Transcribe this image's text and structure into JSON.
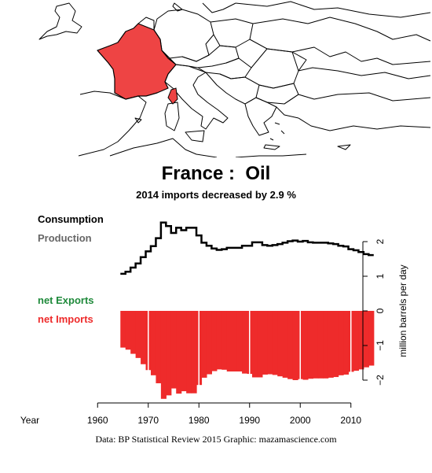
{
  "map": {
    "highlight_color": "#ee4444",
    "outline_color": "#000000"
  },
  "chart_data": {
    "type": "area",
    "title": "France :  Oil",
    "subtitle": "2014 imports decreased by 2.9 %",
    "legend": {
      "consumption": "Consumption",
      "production": "Production",
      "net_exports": "net Exports",
      "net_imports": "net Imports"
    },
    "ylabel": "million barrels per day",
    "x_axis_title": "Year",
    "xlim": [
      1955,
      2015
    ],
    "ylim": [
      -2.7,
      2.7
    ],
    "x_ticks": [
      1960,
      1970,
      1980,
      1990,
      2000,
      2010
    ],
    "y_ticks": [
      2,
      1,
      0,
      -1,
      -2
    ],
    "y_tick_labels": [
      "2",
      "1",
      "0",
      "−1",
      "−2"
    ],
    "colors": {
      "consumption": "#000000",
      "production": "#666666",
      "net_exports": "#1f8a3b",
      "net_imports": "#ee2b2b"
    },
    "years": [
      1965,
      1966,
      1967,
      1968,
      1969,
      1970,
      1971,
      1972,
      1973,
      1974,
      1975,
      1976,
      1977,
      1978,
      1979,
      1980,
      1981,
      1982,
      1983,
      1984,
      1985,
      1986,
      1987,
      1988,
      1989,
      1990,
      1991,
      1992,
      1993,
      1994,
      1995,
      1996,
      1997,
      1998,
      1999,
      2000,
      2001,
      2002,
      2003,
      2004,
      2005,
      2006,
      2007,
      2008,
      2009,
      2010,
      2011,
      2012,
      2013,
      2014
    ],
    "series": [
      {
        "name": "Consumption",
        "values": [
          1.07,
          1.13,
          1.25,
          1.37,
          1.55,
          1.72,
          1.87,
          2.1,
          2.55,
          2.45,
          2.25,
          2.4,
          2.33,
          2.4,
          2.4,
          2.18,
          1.97,
          1.88,
          1.8,
          1.76,
          1.78,
          1.82,
          1.82,
          1.82,
          1.88,
          1.88,
          1.98,
          1.98,
          1.9,
          1.88,
          1.9,
          1.93,
          1.97,
          2.01,
          2.03,
          2.0,
          2.02,
          1.98,
          1.97,
          1.97,
          1.97,
          1.95,
          1.93,
          1.88,
          1.86,
          1.78,
          1.75,
          1.7,
          1.64,
          1.61
        ]
      },
      {
        "name": "net Imports",
        "values": [
          1.06,
          1.12,
          1.24,
          1.36,
          1.54,
          1.71,
          1.86,
          2.09,
          2.54,
          2.44,
          2.24,
          2.39,
          2.32,
          2.38,
          2.38,
          2.14,
          1.93,
          1.83,
          1.74,
          1.69,
          1.7,
          1.75,
          1.75,
          1.75,
          1.81,
          1.82,
          1.92,
          1.92,
          1.84,
          1.83,
          1.85,
          1.89,
          1.93,
          1.97,
          2.0,
          1.97,
          1.99,
          1.96,
          1.95,
          1.95,
          1.95,
          1.93,
          1.91,
          1.86,
          1.84,
          1.76,
          1.73,
          1.69,
          1.63,
          1.58
        ]
      }
    ]
  },
  "credit": "Data: BP Statistical Review 2015    Graphic: mazamascience.com"
}
